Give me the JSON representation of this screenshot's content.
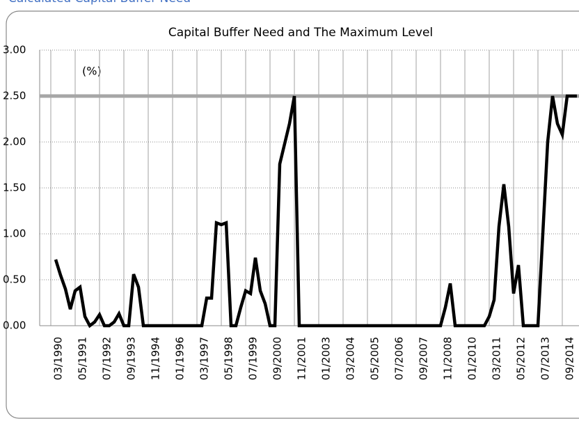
{
  "header": "Calculated Capital Buffer Need",
  "chart_data": {
    "type": "line",
    "title": "Capital Buffer Need and The Maximum Level",
    "annotation": "(%)",
    "categories": [
      "03/1990",
      null,
      null,
      null,
      null,
      "05/1991",
      null,
      null,
      null,
      null,
      "07/1992",
      null,
      null,
      null,
      null,
      "09/1993",
      null,
      null,
      null,
      null,
      "11/1994",
      null,
      null,
      null,
      null,
      "01/1996",
      null,
      null,
      null,
      null,
      "03/1997",
      null,
      null,
      null,
      null,
      "05/1998",
      null,
      null,
      null,
      null,
      "07/1999",
      null,
      null,
      null,
      null,
      "09/2000",
      null,
      null,
      null,
      null,
      "11/2001",
      null,
      null,
      null,
      null,
      "01/2003",
      null,
      null,
      null,
      null,
      "03/2004",
      null,
      null,
      null,
      null,
      "05/2005",
      null,
      null,
      null,
      null,
      "07/2006",
      null,
      null,
      null,
      null,
      "09/2007",
      null,
      null,
      null,
      null,
      "11/2008",
      null,
      null,
      null,
      null,
      "01/2010",
      null,
      null,
      null,
      null,
      "03/2011",
      null,
      null,
      null,
      null,
      "05/2012",
      null,
      null,
      null,
      null,
      "07/2013",
      null,
      null,
      null,
      null,
      "09/2014",
      null,
      null
    ],
    "series": [
      {
        "color": "#000000",
        "values": [
          0.72,
          0.55,
          0.4,
          0.18,
          0.38,
          0.42,
          0.1,
          0,
          0.04,
          0.12,
          0,
          0,
          0.04,
          0.13,
          0,
          0,
          0.56,
          0.42,
          0,
          0,
          0,
          0,
          0,
          0,
          0,
          0,
          0,
          0,
          0,
          0,
          0,
          0.3,
          0.3,
          1.12,
          1.1,
          1.12,
          0,
          0,
          0.2,
          0.38,
          0.35,
          0.74,
          0.38,
          0.24,
          0,
          0,
          1.76,
          1.98,
          2.2,
          2.5,
          0,
          0,
          0,
          0,
          0,
          0,
          0,
          0,
          0,
          0,
          0,
          0,
          0,
          0,
          0,
          0,
          0,
          0,
          0,
          0,
          0,
          0,
          0,
          0,
          0,
          0,
          0,
          0,
          0,
          0,
          0.2,
          0.46,
          0,
          0,
          0,
          0,
          0,
          0,
          0,
          0.1,
          0.28,
          1.08,
          1.54,
          1.08,
          0.35,
          0.66,
          0,
          0,
          0,
          0,
          1.0,
          2.0,
          2.5,
          2.2,
          2.08,
          2.5,
          2.5,
          2.5
        ]
      }
    ],
    "reference_line": {
      "value": 2.5,
      "color": "#a6a6a6"
    },
    "ylim": [
      0,
      3
    ],
    "yticks": [
      {
        "value": 0,
        "label": "0.00"
      },
      {
        "value": 0.5,
        "label": "0.50"
      },
      {
        "value": 1,
        "label": "1.00"
      },
      {
        "value": 1.5,
        "label": "1.50"
      },
      {
        "value": 2,
        "label": "2.00"
      },
      {
        "value": 2.5,
        "label": "2.50"
      },
      {
        "value": 3,
        "label": "3.00"
      }
    ],
    "grid": true
  }
}
